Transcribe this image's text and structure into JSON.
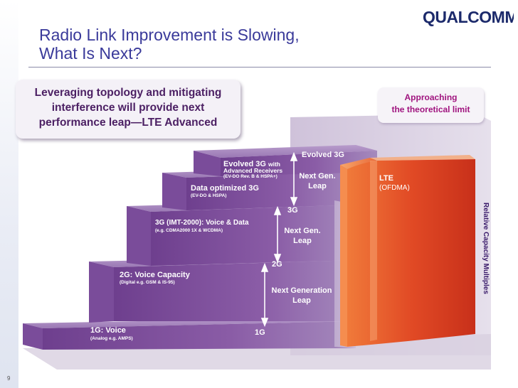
{
  "slide": {
    "title_line1": "Radio Link Improvement is Slowing,",
    "title_line2": "What Is Next?",
    "logo_text": "QUALCOMM",
    "page_number": "9"
  },
  "callout": {
    "line1": "Leveraging topology and mitigating",
    "line2": "interference will provide next",
    "line3": "performance leap—LTE  Advanced"
  },
  "approach": {
    "line1": "Approaching",
    "line2": "the theoretical limit"
  },
  "steps": [
    {
      "label": "1G: Voice",
      "sub": "(Analog e.g. AMPS)"
    },
    {
      "label": "2G: Voice Capacity",
      "sub": "(Digital e.g. GSM & IS-95)"
    },
    {
      "label": "3G (IMT-2000): Voice & Data",
      "sub": "(e.g. CDMA2000 1X & WCDMA)"
    },
    {
      "label": "Data optimized 3G",
      "sub": "(EV-DO & HSPA)"
    },
    {
      "label": "Evolved 3G",
      "label_suffix": "with",
      "label2": "Advanced Receivers",
      "sub": "(EV-DO Rev. B & HSPA+)"
    }
  ],
  "gen_markers": {
    "g1": "1G",
    "g2": "2G",
    "g3": "3G",
    "evolved": "Evolved 3G"
  },
  "leaps": {
    "leap1_line1": "Next Generation",
    "leap1_line2": "Leap",
    "leap2_line1": "Next Gen.",
    "leap2_line2": "Leap",
    "leap3_line1": "Next Gen.",
    "leap3_line2": "Leap"
  },
  "lte": {
    "label": "LTE",
    "sub": "(OFDMA)"
  },
  "axis_label": "Relative Capacity Multiples",
  "colors": {
    "title": "#3a3a9a",
    "step_purple": "#8a5aa6",
    "lte_red": "#e4502a",
    "approach_text": "#a0147f"
  }
}
